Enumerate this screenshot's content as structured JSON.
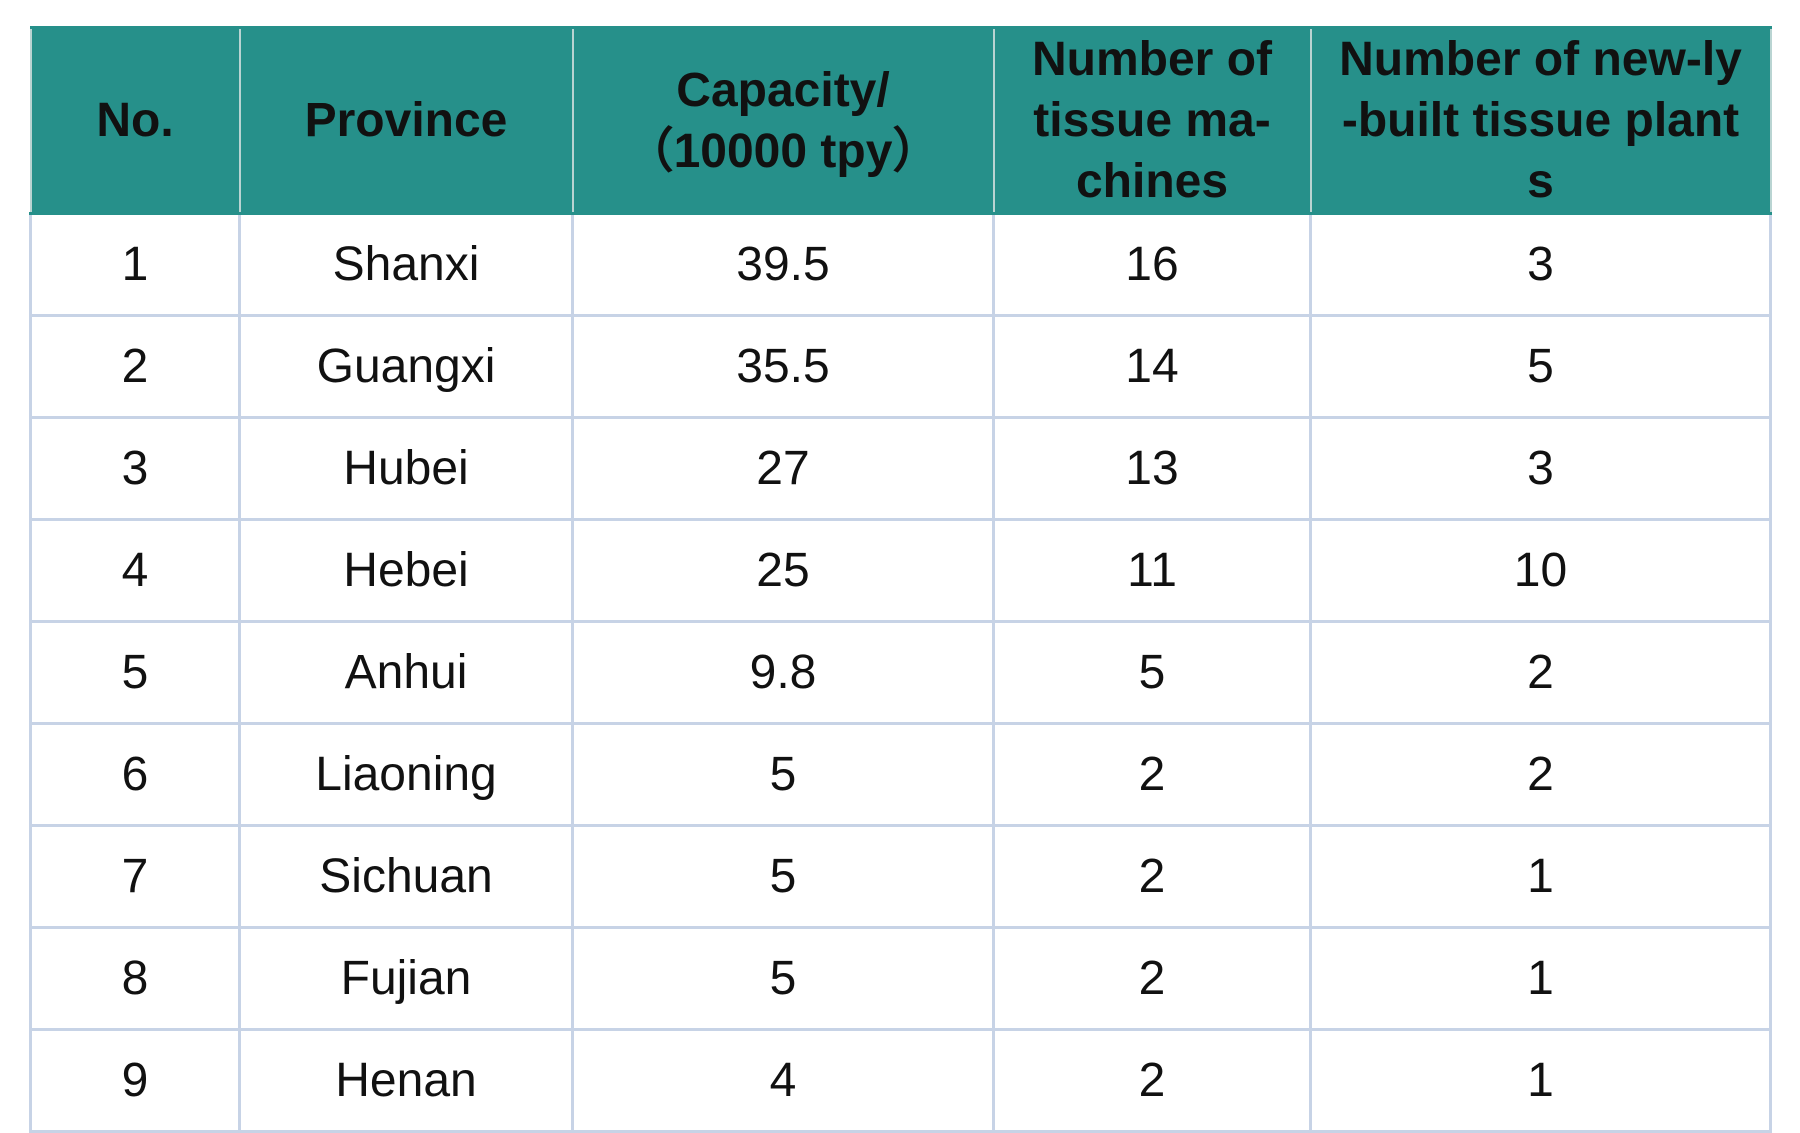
{
  "table": {
    "headers": [
      "No.",
      "Province",
      "Capacity/\n（10000 tpy）",
      "Number of tissue ma-chines",
      "Number of new-ly-built tissue plants"
    ],
    "rows": [
      [
        "1",
        "Shanxi",
        "39.5",
        "16",
        "3"
      ],
      [
        "2",
        "Guangxi",
        "35.5",
        "14",
        "5"
      ],
      [
        "3",
        "Hubei",
        "27",
        "13",
        "3"
      ],
      [
        "4",
        "Hebei",
        "25",
        "11",
        "10"
      ],
      [
        "5",
        "Anhui",
        "9.8",
        "5",
        "2"
      ],
      [
        "6",
        "Liaoning",
        "5",
        "2",
        "2"
      ],
      [
        "7",
        "Sichuan",
        "5",
        "2",
        "1"
      ],
      [
        "8",
        "Fujian",
        "5",
        "2",
        "1"
      ],
      [
        "9",
        "Henan",
        "4",
        "2",
        "1"
      ]
    ]
  },
  "colors": {
    "header_background": "#26908a",
    "grid_line": "#c7d3e6",
    "text": "#111111"
  }
}
